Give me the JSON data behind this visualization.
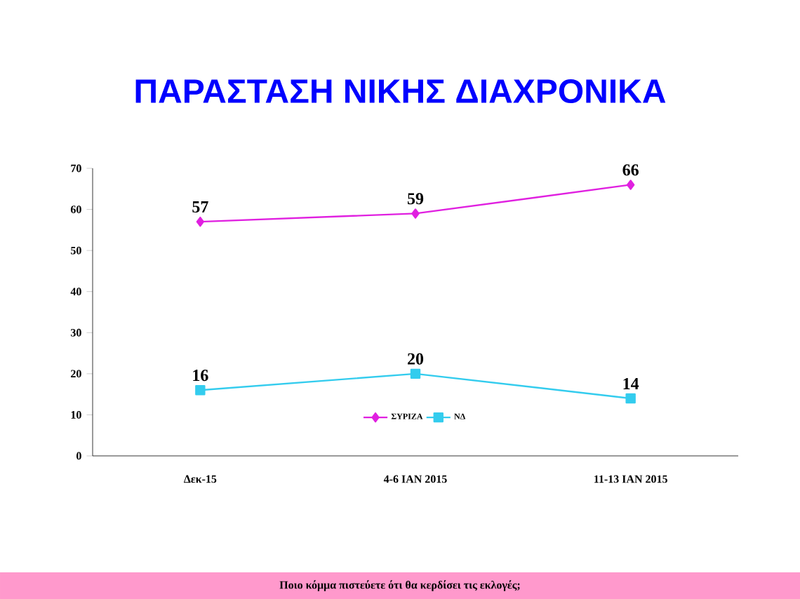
{
  "chart_data": {
    "type": "line",
    "title": "ΠΑΡΑΣΤΑΣΗ ΝΙΚΗΣ ΔΙΑΧΡΟΝΙΚΑ",
    "categories": [
      "Δεκ-15",
      "4-6 ΙΑΝ 2015",
      "11-13 ΙΑΝ 2015"
    ],
    "series": [
      {
        "name": "ΣΥΡΙΖΑ",
        "color": "#e020e0",
        "marker": "diamond",
        "values": [
          57,
          59,
          66
        ]
      },
      {
        "name": "ΝΔ",
        "color": "#33ccee",
        "marker": "square",
        "values": [
          16,
          20,
          14
        ]
      }
    ],
    "ylim": [
      0,
      70
    ],
    "yticks": [
      0,
      10,
      20,
      30,
      40,
      50,
      60,
      70
    ],
    "grid": false,
    "legend": "bottom",
    "data_labels": true,
    "annotations": [
      "Ποιο κόμμα πιστεύετε ότι θα κερδίσει τις εκλογές;"
    ]
  }
}
